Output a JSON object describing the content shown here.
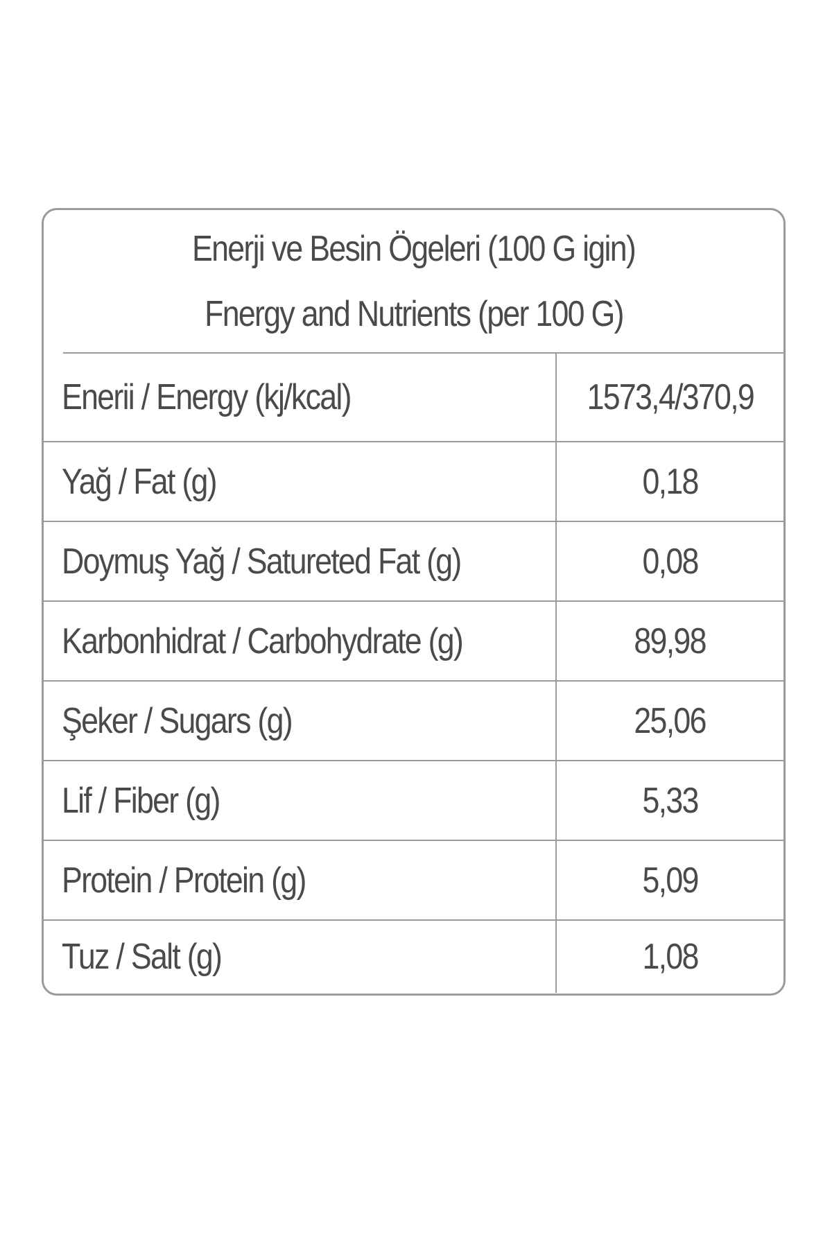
{
  "header": {
    "line1": "Enerji ve Besin Ögeleri (100 G igin)",
    "line2": "Fnergy and Nutrients (per 100 G)"
  },
  "rows": [
    {
      "label": "Enerii / Energy (kj/kcal)",
      "value": "1573,4/370,9"
    },
    {
      "label": "Yağ / Fat (g)",
      "value": "0,18"
    },
    {
      "label": "Doymuş Yağ / Satureted Fat (g)",
      "value": "0,08"
    },
    {
      "label": "Karbonhidrat / Carbohydrate (g)",
      "value": "89,98"
    },
    {
      "label": "Şeker / Sugars (g)",
      "value": "25,06"
    },
    {
      "label": "Lif / Fiber (g)",
      "value": "5,33"
    },
    {
      "label": "Protein / Protein (g)",
      "value": "5,09"
    },
    {
      "label": "Tuz / Salt (g)",
      "value": "1,08"
    }
  ]
}
